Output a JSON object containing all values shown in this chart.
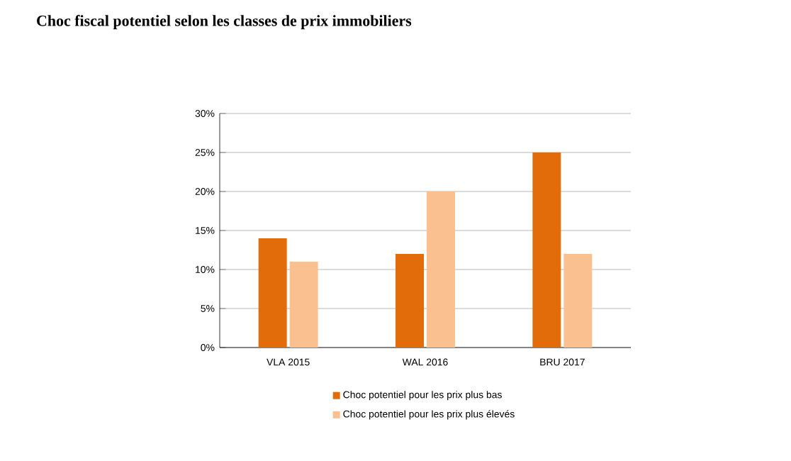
{
  "chart_data": {
    "type": "bar",
    "title": "Choc fiscal potentiel selon les classes de prix immobiliers",
    "categories": [
      "VLA 2015",
      "WAL 2016",
      "BRU 2017"
    ],
    "series": [
      {
        "name": "Choc potentiel pour les prix plus bas",
        "color": "#e36c0a",
        "values": [
          14,
          12,
          25
        ]
      },
      {
        "name": "Choc potentiel pour les prix plus élevés",
        "color": "#fac090",
        "values": [
          11,
          20,
          12
        ]
      }
    ],
    "ylim": [
      0,
      30
    ],
    "yticks": [
      {
        "value": 0,
        "label": "0%"
      },
      {
        "value": 5,
        "label": "5%"
      },
      {
        "value": 10,
        "label": "10%"
      },
      {
        "value": 15,
        "label": "15%"
      },
      {
        "value": 20,
        "label": "20%"
      },
      {
        "value": 25,
        "label": "25%"
      },
      {
        "value": 30,
        "label": "30%"
      }
    ],
    "grid": "y",
    "legend": "bottom"
  }
}
